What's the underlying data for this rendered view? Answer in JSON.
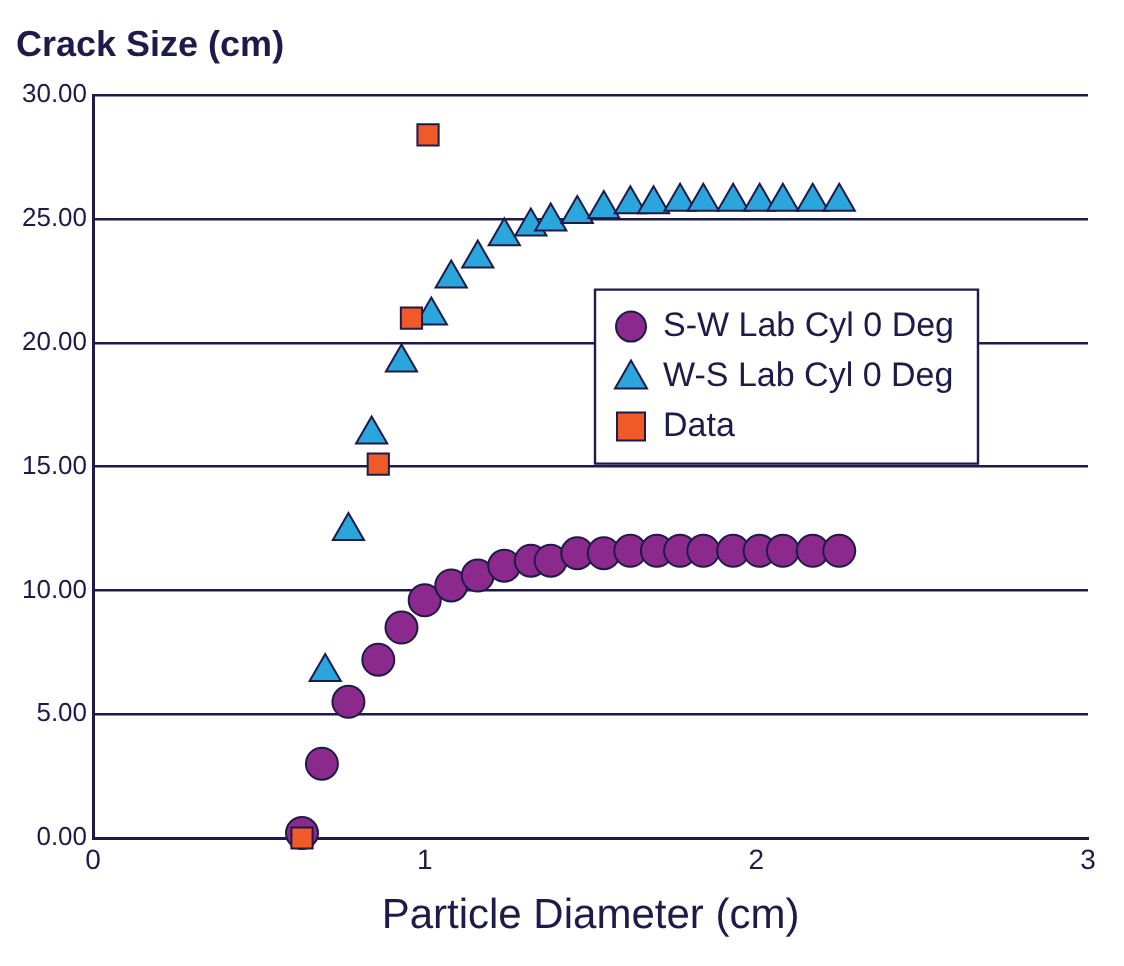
{
  "chart_data": {
    "type": "scatter",
    "xlabel": "Particle Diameter (cm)",
    "ylabel": "Crack Size (cm)",
    "xlim": [
      0,
      3
    ],
    "xticks": [
      0,
      1,
      2,
      3
    ],
    "ylim": [
      0,
      30
    ],
    "yticks": [
      {
        "value": 0,
        "label": "0.00"
      },
      {
        "value": 5,
        "label": "5.00"
      },
      {
        "value": 10,
        "label": "10.00"
      },
      {
        "value": 15,
        "label": "15.00"
      },
      {
        "value": 20,
        "label": "20.00"
      },
      {
        "value": 25,
        "label": "25.00"
      },
      {
        "value": 30,
        "label": "30.00"
      }
    ],
    "grid": "y",
    "legend": "right",
    "series": [
      {
        "name": "S-W Lab Cyl 0 Deg",
        "color": "#8b2a8c",
        "marker": "circle",
        "x": [
          0.63,
          0.69,
          0.77,
          0.86,
          0.93,
          1.0,
          1.08,
          1.16,
          1.24,
          1.32,
          1.38,
          1.46,
          1.54,
          1.62,
          1.7,
          1.77,
          1.84,
          1.93,
          2.01,
          2.08,
          2.17,
          2.25
        ],
        "values": [
          0.2,
          3.0,
          5.5,
          7.2,
          8.5,
          9.6,
          10.2,
          10.6,
          11.0,
          11.2,
          11.2,
          11.5,
          11.5,
          11.6,
          11.6,
          11.6,
          11.6,
          11.6,
          11.6,
          11.6,
          11.6,
          11.6
        ]
      },
      {
        "name": "W-S Lab Cyl 0 Deg",
        "color": "#2aa6dc",
        "marker": "triangle",
        "x": [
          0.7,
          0.77,
          0.84,
          0.93,
          1.02,
          1.08,
          1.16,
          1.24,
          1.32,
          1.38,
          1.46,
          1.54,
          1.62,
          1.69,
          1.77,
          1.84,
          1.93,
          2.01,
          2.08,
          2.17,
          2.25
        ],
        "values": [
          6.7,
          12.4,
          16.3,
          19.2,
          21.1,
          22.6,
          23.4,
          24.3,
          24.7,
          24.9,
          25.2,
          25.4,
          25.6,
          25.6,
          25.7,
          25.7,
          25.7,
          25.7,
          25.7,
          25.7,
          25.7
        ]
      },
      {
        "name": "Data",
        "color": "#f05a28",
        "marker": "square",
        "x": [
          0.63,
          0.86,
          0.96,
          1.01
        ],
        "values": [
          0,
          15.1,
          21.0,
          28.4
        ]
      }
    ]
  }
}
